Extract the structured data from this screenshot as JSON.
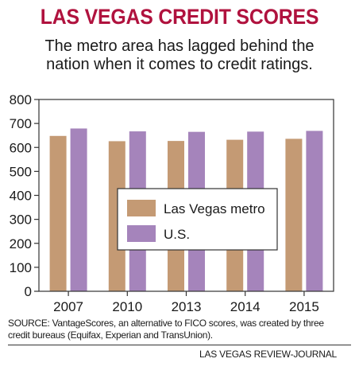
{
  "header": {
    "title": "LAS VEGAS CREDIT SCORES",
    "subtitle_line1": "The metro area has lagged behind the",
    "subtitle_line2": "nation when it comes to credit ratings."
  },
  "footer": {
    "source": "SOURCE: VantageScores, an alternative to FICO scores, was created by three credit bureaus (Equifax, Experian and TransUnion).",
    "credit": "LAS VEGAS REVIEW-JOURNAL"
  },
  "colors": {
    "title": "#b0123e",
    "las_vegas": "#c49a74",
    "us": "#a584bb"
  },
  "chart_data": {
    "type": "bar",
    "categories": [
      "2007",
      "2010",
      "2013",
      "2014",
      "2015"
    ],
    "series": [
      {
        "name": "Las Vegas metro",
        "values": [
          648,
          626,
          627,
          632,
          636
        ],
        "color": "#c49a74"
      },
      {
        "name": "U.S.",
        "values": [
          679,
          667,
          665,
          666,
          669
        ],
        "color": "#a584bb"
      }
    ],
    "yticks": [
      0,
      100,
      200,
      300,
      400,
      500,
      600,
      700,
      800
    ],
    "ylim": [
      0,
      800
    ],
    "xlabel": "",
    "ylabel": "",
    "grid": false,
    "legend": "center"
  }
}
